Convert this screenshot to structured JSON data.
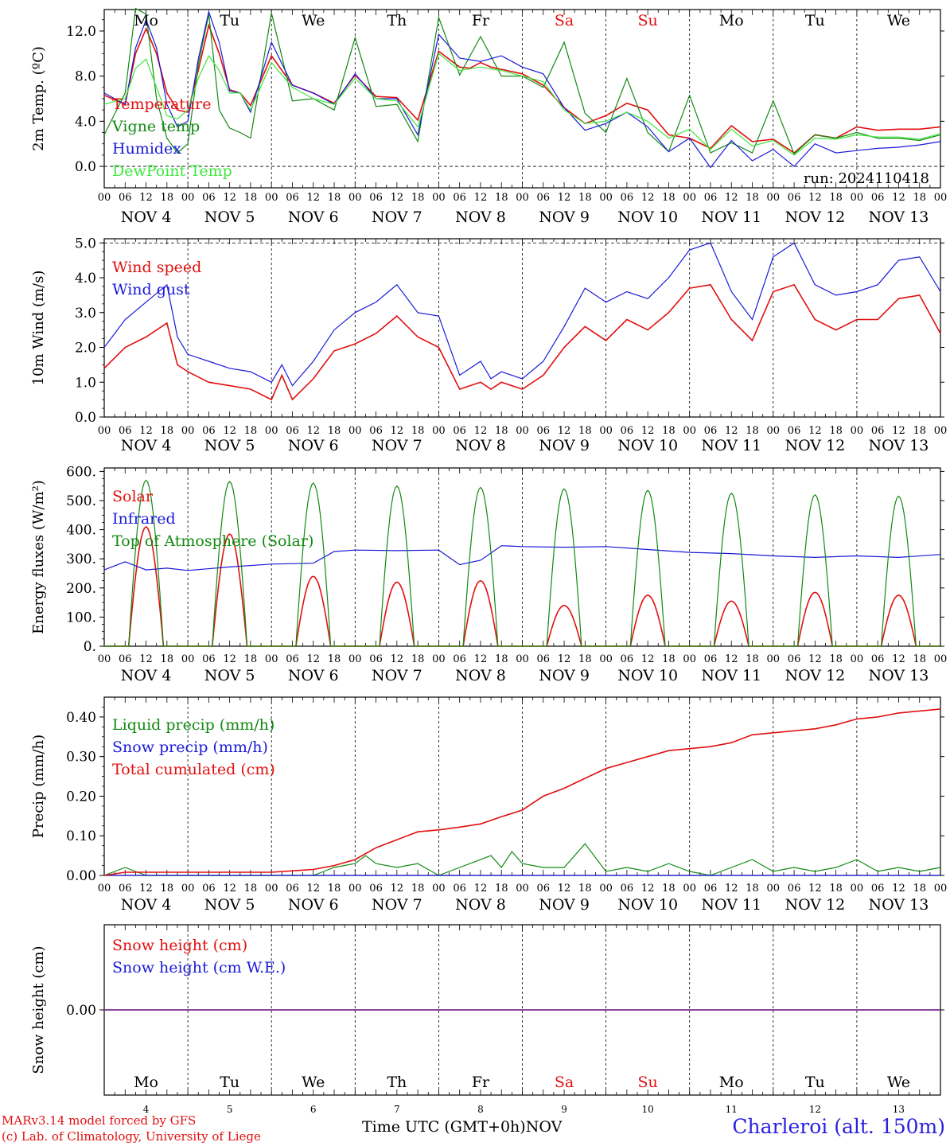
{
  "footer": {
    "credit_line1": "MARv3.14 model forced by GFS",
    "credit_line2": "(c) Lab. of Climatology, University of Liege",
    "x_axis_label": "Time UTC (GMT+0h)",
    "x_axis_unit": "NOV",
    "station": "Charleroi (alt. 150m)"
  },
  "colors": {
    "red": "#e01010",
    "green": "#128a12",
    "blue": "#1a1ad8",
    "lightgreen": "#3ee83e",
    "purple": "#7a3c9a",
    "weekend": "#e01010"
  },
  "days": {
    "weekday_names": [
      "Mo",
      "Tu",
      "We",
      "Th",
      "Fr",
      "Sa",
      "Su",
      "Mo",
      "Tu",
      "We"
    ],
    "weekend_flags": [
      false,
      false,
      false,
      false,
      false,
      true,
      true,
      false,
      false,
      false
    ],
    "date_labels": [
      "NOV  4",
      "NOV  5",
      "NOV  6",
      "NOV  7",
      "NOV  8",
      "NOV  9",
      "NOV 10",
      "NOV 11",
      "NOV 12",
      "NOV 13"
    ],
    "day_numbers": [
      "4",
      "5",
      "6",
      "7",
      "8",
      "9",
      "10",
      "11",
      "12",
      "13"
    ],
    "hour_ticks": [
      "00",
      "06",
      "12",
      "18"
    ],
    "final_hour": "00"
  },
  "chart_data": [
    {
      "type": "line",
      "ylabel": "2m Temp. (ºC)",
      "ylim": [
        -2,
        14
      ],
      "yticks": [
        "0.0",
        "4.0",
        "8.0",
        "12.0"
      ],
      "ytick_values": [
        0,
        4,
        8,
        12
      ],
      "dashed_ref": 0,
      "annotation": "run: 2024110418",
      "x_unit": "hours since Nov 4 00 UTC",
      "series": [
        {
          "name": "Temperature",
          "color": "red",
          "x": [
            0,
            6,
            9,
            12,
            15,
            18,
            21,
            24,
            27,
            30,
            33,
            36,
            39,
            42,
            48,
            54,
            60,
            66,
            72,
            78,
            84,
            90,
            96,
            102,
            105,
            108,
            111,
            114,
            120,
            126,
            132,
            138,
            144,
            150,
            156,
            162,
            168,
            174,
            180,
            186,
            192,
            198,
            204,
            210,
            216,
            222,
            228,
            234,
            240
          ],
          "y": [
            6.3,
            5.5,
            10,
            12.2,
            10,
            6.5,
            5,
            4.8,
            8.5,
            12.5,
            10,
            6.8,
            6.5,
            5.4,
            9.8,
            7.2,
            6.5,
            5.6,
            8.1,
            6.2,
            6.1,
            4.1,
            10.2,
            8.8,
            8.7,
            9.2,
            8.8,
            8.6,
            8.2,
            7.2,
            5.2,
            3.8,
            4.5,
            5.6,
            5,
            2.8,
            2.5,
            1.6,
            3.6,
            2.2,
            2.4,
            1.2,
            2.8,
            2.5,
            3.5,
            3.2,
            3.3,
            3.3,
            3.5
          ]
        },
        {
          "name": "Vigne temp",
          "color": "green",
          "x": [
            0,
            6,
            9,
            12,
            15,
            18,
            21,
            24,
            27,
            30,
            33,
            36,
            39,
            42,
            48,
            54,
            60,
            66,
            72,
            78,
            84,
            90,
            96,
            102,
            108,
            114,
            120,
            126,
            132,
            138,
            144,
            150,
            156,
            162,
            168,
            174,
            180,
            186,
            192,
            198,
            204,
            210,
            216,
            222,
            228,
            234,
            240
          ],
          "y": [
            2.8,
            6.5,
            14,
            13.5,
            6,
            2.5,
            1.2,
            2,
            9,
            13.5,
            5,
            3.4,
            3,
            2.5,
            13.6,
            5.8,
            6,
            5,
            11.4,
            5.3,
            5.5,
            2.2,
            13.2,
            8.1,
            11.5,
            8,
            8,
            7,
            11,
            4.7,
            3,
            7.8,
            3,
            1.3,
            6.3,
            1.2,
            2.1,
            1.2,
            5.8,
            1.1,
            2.8,
            2.5,
            3,
            2.5,
            2.5,
            2.3,
            2.8
          ]
        },
        {
          "name": "Humidex",
          "color": "blue",
          "x": [
            0,
            6,
            9,
            12,
            15,
            18,
            21,
            24,
            27,
            30,
            33,
            36,
            39,
            42,
            48,
            54,
            60,
            66,
            72,
            78,
            84,
            90,
            96,
            102,
            108,
            114,
            120,
            126,
            132,
            138,
            144,
            150,
            156,
            162,
            168,
            174,
            180,
            186,
            192,
            198,
            204,
            210,
            216,
            222,
            228,
            234,
            240
          ],
          "y": [
            6.5,
            5.5,
            10.5,
            13,
            10.5,
            5.5,
            3.5,
            4,
            9.5,
            13.7,
            11,
            6.7,
            6.5,
            4.8,
            11,
            7.2,
            6.5,
            5.5,
            8.2,
            6,
            6,
            2.8,
            11.7,
            9.6,
            9.3,
            9.8,
            8.8,
            8.2,
            5.2,
            3.2,
            3.8,
            4.8,
            3.5,
            1.3,
            2.5,
            -0.1,
            2.3,
            0.5,
            1.5,
            0,
            2,
            1.2,
            1.4,
            1.6,
            1.7,
            1.9,
            2.2
          ]
        },
        {
          "name": "DewPoint Temp",
          "color": "lightgreen",
          "x": [
            0,
            6,
            9,
            12,
            15,
            18,
            21,
            24,
            27,
            30,
            33,
            36,
            39,
            42,
            48,
            54,
            60,
            66,
            72,
            78,
            84,
            90,
            96,
            102,
            108,
            114,
            120,
            126,
            132,
            138,
            144,
            150,
            156,
            162,
            168,
            174,
            180,
            186,
            192,
            198,
            204,
            210,
            216,
            222,
            228,
            234,
            240
          ],
          "y": [
            5.5,
            6,
            8.7,
            9.5,
            7,
            4.5,
            4.2,
            5,
            7.8,
            9.8,
            8.5,
            6.5,
            6.5,
            5,
            9.2,
            7,
            6,
            5.5,
            7.8,
            6,
            5.8,
            3.5,
            10,
            8.5,
            8.8,
            8.5,
            8,
            7.5,
            5,
            3.8,
            4,
            4.8,
            4,
            2.5,
            3.3,
            1.5,
            3.3,
            1.8,
            2.3,
            1,
            2.5,
            2.4,
            2.8,
            2.6,
            2.6,
            2.4,
            2.9
          ]
        }
      ]
    },
    {
      "type": "line",
      "ylabel": "10m Wind (m/s)",
      "ylim": [
        0,
        5
      ],
      "yticks": [
        "0.0",
        "1.0",
        "2.0",
        "3.0",
        "4.0",
        "5.0"
      ],
      "ytick_values": [
        0,
        1,
        2,
        3,
        4,
        5
      ],
      "dashed_ref": 5,
      "x_unit": "hours since Nov 4 00 UTC",
      "series": [
        {
          "name": "Wind speed",
          "color": "red",
          "x": [
            0,
            6,
            12,
            18,
            21,
            24,
            30,
            36,
            42,
            48,
            51,
            54,
            60,
            66,
            72,
            78,
            84,
            90,
            96,
            102,
            108,
            111,
            114,
            120,
            126,
            132,
            138,
            144,
            150,
            156,
            162,
            168,
            174,
            180,
            186,
            192,
            198,
            204,
            210,
            216,
            222,
            228,
            234,
            240
          ],
          "y": [
            1.4,
            2,
            2.3,
            2.7,
            1.5,
            1.3,
            1,
            0.9,
            0.8,
            0.5,
            1.2,
            0.5,
            1.1,
            1.9,
            2.1,
            2.4,
            2.9,
            2.3,
            2,
            0.8,
            1,
            0.8,
            1,
            0.8,
            1.2,
            2,
            2.6,
            2.2,
            2.8,
            2.5,
            3,
            3.7,
            3.8,
            2.8,
            2.2,
            3.6,
            3.8,
            2.8,
            2.5,
            2.8,
            2.8,
            3.4,
            3.5,
            2.4
          ]
        },
        {
          "name": "Wind gust",
          "color": "blue",
          "x": [
            0,
            6,
            12,
            18,
            21,
            24,
            30,
            36,
            42,
            48,
            51,
            54,
            60,
            66,
            72,
            78,
            84,
            90,
            96,
            102,
            108,
            111,
            114,
            120,
            126,
            132,
            138,
            144,
            150,
            156,
            162,
            168,
            174,
            180,
            186,
            192,
            198,
            204,
            210,
            216,
            222,
            228,
            234,
            240
          ],
          "y": [
            2,
            2.8,
            3.3,
            3.8,
            2.3,
            1.8,
            1.6,
            1.4,
            1.3,
            1,
            1.5,
            0.9,
            1.6,
            2.5,
            3,
            3.3,
            3.8,
            3,
            2.9,
            1.2,
            1.6,
            1.1,
            1.3,
            1.1,
            1.6,
            2.6,
            3.7,
            3.3,
            3.6,
            3.4,
            4,
            4.8,
            5,
            3.6,
            2.8,
            4.6,
            5,
            3.8,
            3.5,
            3.6,
            3.8,
            4.5,
            4.6,
            3.6
          ]
        }
      ]
    },
    {
      "type": "line",
      "ylabel": "Energy fluxes (W/m²)",
      "ylim": [
        0,
        600
      ],
      "yticks": [
        "0.",
        "100.",
        "200.",
        "300.",
        "400.",
        "500.",
        "600."
      ],
      "ytick_values": [
        0,
        100,
        200,
        300,
        400,
        500,
        600
      ],
      "x_unit": "hours since Nov 4 00 UTC",
      "series": [
        {
          "name": "Solar",
          "color": "red",
          "diurnal": true,
          "peak_hour": 12,
          "half_width": 5,
          "peaks": [
            410,
            385,
            240,
            220,
            225,
            140,
            175,
            155,
            185,
            175
          ]
        },
        {
          "name": "Infrared",
          "color": "blue",
          "x": [
            0,
            6,
            12,
            18,
            24,
            36,
            48,
            60,
            66,
            72,
            84,
            96,
            102,
            108,
            114,
            120,
            132,
            144,
            156,
            168,
            180,
            192,
            204,
            216,
            228,
            240
          ],
          "y": [
            262,
            290,
            262,
            268,
            260,
            272,
            282,
            285,
            325,
            330,
            328,
            330,
            280,
            295,
            345,
            342,
            340,
            342,
            332,
            322,
            318,
            310,
            305,
            310,
            305,
            315
          ]
        },
        {
          "name": "Top of Atmosphere (Solar)",
          "color": "green",
          "diurnal": true,
          "peak_hour": 12,
          "half_width": 5,
          "peaks": [
            570,
            565,
            560,
            550,
            545,
            540,
            535,
            525,
            520,
            515
          ]
        }
      ]
    },
    {
      "type": "line",
      "ylabel": "Precip (mm/h)",
      "ylim": [
        0,
        0.45
      ],
      "yticks": [
        "0.00",
        "0.10",
        "0.20",
        "0.30",
        "0.40"
      ],
      "ytick_values": [
        0,
        0.1,
        0.2,
        0.3,
        0.4
      ],
      "x_unit": "hours since Nov 4 00 UTC",
      "series": [
        {
          "name": "Liquid precip (mm/h)",
          "color": "green",
          "x": [
            0,
            3,
            6,
            9,
            12,
            18,
            24,
            36,
            48,
            60,
            63,
            66,
            72,
            75,
            78,
            84,
            90,
            96,
            102,
            108,
            111,
            114,
            117,
            120,
            126,
            132,
            138,
            144,
            150,
            156,
            162,
            168,
            174,
            180,
            186,
            192,
            198,
            204,
            210,
            216,
            222,
            228,
            234,
            240
          ],
          "y": [
            0,
            0.01,
            0.02,
            0.01,
            0,
            0,
            0,
            0,
            0,
            0,
            0.01,
            0.02,
            0.03,
            0.05,
            0.03,
            0.02,
            0.03,
            0,
            0.02,
            0.04,
            0.05,
            0.02,
            0.06,
            0.03,
            0.02,
            0.02,
            0.08,
            0.01,
            0.02,
            0.01,
            0.03,
            0.01,
            0,
            0.02,
            0.04,
            0.01,
            0.02,
            0.01,
            0.02,
            0.04,
            0.01,
            0.02,
            0.01,
            0.02
          ]
        },
        {
          "name": "Snow precip (mm/h)",
          "color": "blue",
          "x": [
            0,
            240
          ],
          "y": [
            0,
            0
          ]
        },
        {
          "name": "Total cumulated (cm)",
          "color": "red",
          "x": [
            0,
            6,
            48,
            60,
            66,
            72,
            78,
            84,
            90,
            96,
            102,
            108,
            114,
            120,
            126,
            132,
            138,
            144,
            150,
            156,
            162,
            168,
            174,
            180,
            186,
            192,
            198,
            204,
            210,
            216,
            222,
            228,
            234,
            240
          ],
          "y": [
            0,
            0.008,
            0.008,
            0.015,
            0.025,
            0.04,
            0.07,
            0.09,
            0.11,
            0.115,
            0.122,
            0.13,
            0.148,
            0.165,
            0.2,
            0.22,
            0.245,
            0.27,
            0.285,
            0.3,
            0.315,
            0.32,
            0.325,
            0.335,
            0.355,
            0.36,
            0.365,
            0.37,
            0.38,
            0.395,
            0.4,
            0.41,
            0.415,
            0.42
          ]
        }
      ]
    },
    {
      "type": "line",
      "ylabel": "Snow height (cm)",
      "ylim": [
        -1,
        1
      ],
      "yticks": [
        "0.00"
      ],
      "ytick_values": [
        0
      ],
      "x_unit": "hours since Nov 4 00 UTC",
      "series": [
        {
          "name": "Snow height (cm)",
          "color": "red",
          "x": [
            0,
            240
          ],
          "y": [
            0,
            0
          ]
        },
        {
          "name": "Snow height (cm W.E.)",
          "color": "blue",
          "x": [
            0,
            240
          ],
          "y": [
            0,
            0
          ]
        }
      ]
    }
  ]
}
